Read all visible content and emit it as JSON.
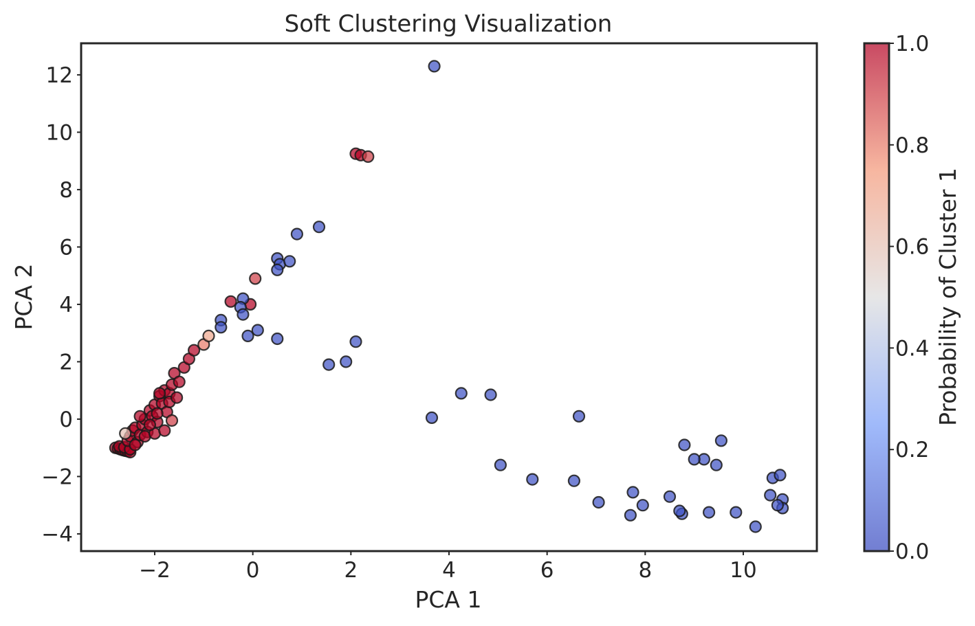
{
  "chart_data": {
    "type": "scatter",
    "title": "Soft Clustering Visualization",
    "xlabel": "PCA 1",
    "ylabel": "PCA 2",
    "xlim": [
      -3.5,
      11.5
    ],
    "ylim": [
      -4.6,
      13.1
    ],
    "xticks": [
      -2,
      0,
      2,
      4,
      6,
      8,
      10
    ],
    "yticks": [
      -4,
      -2,
      0,
      2,
      4,
      6,
      8,
      10,
      12
    ],
    "grid": false,
    "colormap": "coolwarm",
    "colorbar": {
      "label": "Probability of Cluster 1",
      "min": 0.0,
      "max": 1.0,
      "ticks": [
        0.0,
        0.2,
        0.4,
        0.6,
        0.8,
        1.0
      ]
    },
    "points": [
      [
        -2.8,
        -1.0,
        1
      ],
      [
        -2.75,
        -1.02,
        1
      ],
      [
        -2.7,
        -1.05,
        1
      ],
      [
        -2.65,
        -1.08,
        1
      ],
      [
        -2.6,
        -1.1,
        1
      ],
      [
        -2.55,
        -1.12,
        1
      ],
      [
        -2.5,
        -1.15,
        1
      ],
      [
        -2.72,
        -0.95,
        1
      ],
      [
        -2.62,
        -0.98,
        1
      ],
      [
        -2.5,
        -1.05,
        1
      ],
      [
        -2.55,
        -0.75,
        1
      ],
      [
        -2.5,
        -0.6,
        1
      ],
      [
        -2.45,
        -0.4,
        1
      ],
      [
        -2.4,
        -0.3,
        1
      ],
      [
        -2.35,
        -0.8,
        1
      ],
      [
        -2.3,
        -0.55,
        1
      ],
      [
        -2.25,
        -0.2,
        1
      ],
      [
        -2.2,
        0.0,
        1
      ],
      [
        -2.15,
        -0.45,
        1
      ],
      [
        -2.1,
        0.3,
        1
      ],
      [
        -2.05,
        0.1,
        1
      ],
      [
        -2.0,
        0.5,
        1
      ],
      [
        -1.95,
        -0.1,
        1
      ],
      [
        -1.9,
        0.8,
        1
      ],
      [
        -1.85,
        0.55,
        1
      ],
      [
        -1.8,
        1.0,
        1
      ],
      [
        -1.75,
        0.25,
        1
      ],
      [
        -1.7,
        0.9,
        1
      ],
      [
        -1.65,
        1.2,
        1
      ],
      [
        -1.6,
        1.6,
        1
      ],
      [
        -1.5,
        1.3,
        1
      ],
      [
        -1.4,
        1.8,
        1
      ],
      [
        -1.3,
        2.1,
        1
      ],
      [
        -1.2,
        2.4,
        1
      ],
      [
        -1.0,
        2.6,
        0.8
      ],
      [
        -0.9,
        2.9,
        0.7
      ],
      [
        -2.2,
        -0.6,
        1
      ],
      [
        -2.0,
        -0.5,
        1
      ],
      [
        -1.8,
        -0.4,
        1
      ],
      [
        -2.3,
        0.1,
        1
      ],
      [
        -2.1,
        -0.2,
        1
      ],
      [
        -1.95,
        0.2,
        1
      ],
      [
        -1.65,
        -0.05,
        0.9
      ],
      [
        -2.6,
        -0.5,
        0.6
      ],
      [
        -2.4,
        -0.9,
        1
      ],
      [
        -1.7,
        0.6,
        1
      ],
      [
        -1.9,
        0.9,
        1
      ],
      [
        -1.55,
        0.75,
        1
      ],
      [
        -0.45,
        4.1,
        1
      ],
      [
        -0.05,
        4.0,
        1
      ],
      [
        0.05,
        4.9,
        0.9
      ],
      [
        2.1,
        9.25,
        1
      ],
      [
        2.2,
        9.2,
        1
      ],
      [
        2.35,
        9.15,
        0.9
      ],
      [
        3.7,
        12.3,
        0.02
      ],
      [
        1.35,
        6.7,
        0.02
      ],
      [
        0.9,
        6.45,
        0.02
      ],
      [
        0.5,
        5.6,
        0.02
      ],
      [
        0.55,
        5.4,
        0.02
      ],
      [
        0.5,
        5.2,
        0.02
      ],
      [
        0.75,
        5.5,
        0.02
      ],
      [
        -0.2,
        4.2,
        0.02
      ],
      [
        -0.25,
        3.9,
        0.02
      ],
      [
        -0.2,
        3.65,
        0.02
      ],
      [
        -0.65,
        3.45,
        0.02
      ],
      [
        0.1,
        3.1,
        0.02
      ],
      [
        2.1,
        2.7,
        0.02
      ],
      [
        0.5,
        2.8,
        0.02
      ],
      [
        -0.65,
        3.2,
        0.02
      ],
      [
        -0.1,
        2.9,
        0.02
      ],
      [
        10.25,
        -3.75,
        0.02
      ],
      [
        10.6,
        -2.05,
        0.02
      ],
      [
        10.75,
        -1.95,
        0.02
      ],
      [
        10.8,
        -2.8,
        0.02
      ],
      [
        10.8,
        -3.1,
        0.02
      ],
      [
        10.7,
        -3.0,
        0.02
      ],
      [
        10.55,
        -2.65,
        0.02
      ],
      [
        9.85,
        -3.25,
        0.02
      ],
      [
        9.3,
        -3.25,
        0.02
      ],
      [
        8.75,
        -3.3,
        0.02
      ],
      [
        8.7,
        -3.2,
        0.02
      ],
      [
        7.7,
        -3.35,
        0.02
      ],
      [
        7.05,
        -2.9,
        0.02
      ],
      [
        7.95,
        -3.0,
        0.02
      ],
      [
        8.5,
        -2.7,
        0.02
      ],
      [
        9.55,
        -0.75,
        0.02
      ],
      [
        9.45,
        -1.6,
        0.02
      ],
      [
        9.2,
        -1.4,
        0.02
      ],
      [
        9.0,
        -1.4,
        0.02
      ],
      [
        8.8,
        -0.9,
        0.02
      ],
      [
        7.75,
        -2.55,
        0.02
      ],
      [
        6.55,
        -2.15,
        0.02
      ],
      [
        5.7,
        -2.1,
        0.02
      ],
      [
        5.05,
        -1.6,
        0.02
      ],
      [
        6.65,
        0.1,
        0.02
      ],
      [
        4.85,
        0.85,
        0.02
      ],
      [
        4.25,
        0.9,
        0.02
      ],
      [
        3.65,
        0.05,
        0.02
      ],
      [
        1.9,
        2.0,
        0.02
      ],
      [
        1.55,
        1.9,
        0.02
      ]
    ]
  }
}
